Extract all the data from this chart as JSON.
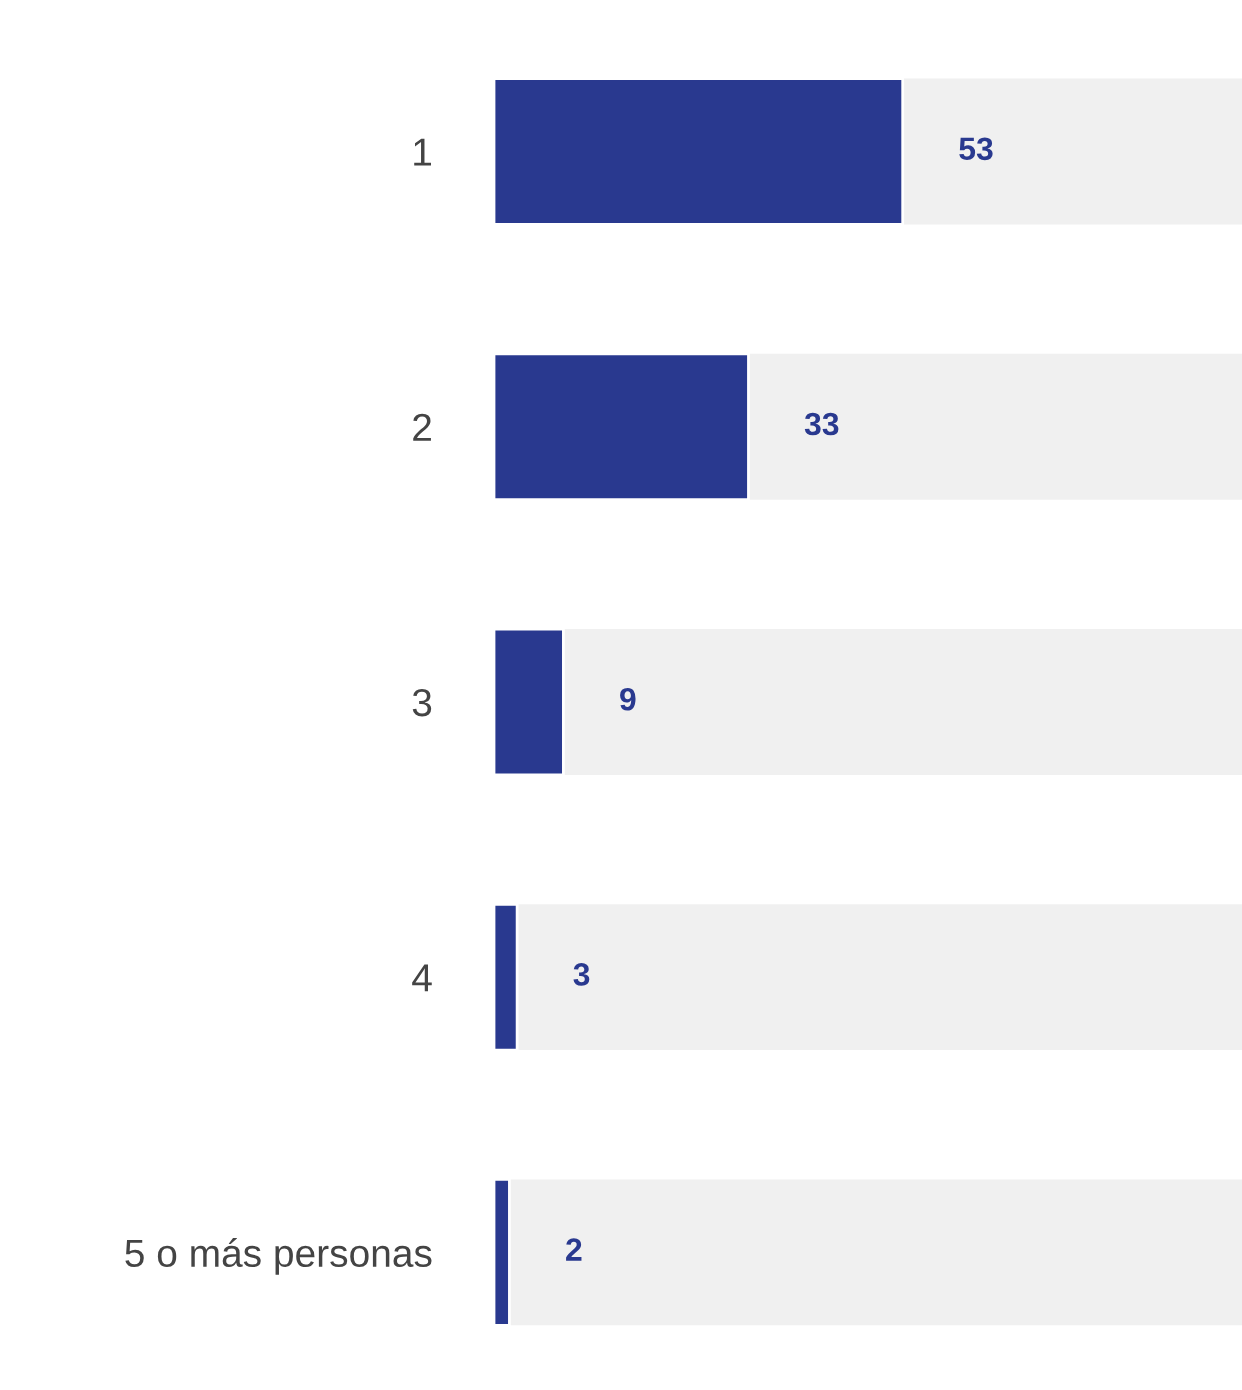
{
  "chart_data": {
    "type": "bar",
    "orientation": "horizontal",
    "categories": [
      "1",
      "2",
      "3",
      "4",
      "5 o más personas"
    ],
    "values": [
      53,
      33,
      9,
      3,
      2
    ],
    "color": "#29398f",
    "data_labels": true,
    "xlim": [
      0,
      97
    ],
    "tick_labels": "y",
    "grid": false,
    "legend": false
  }
}
